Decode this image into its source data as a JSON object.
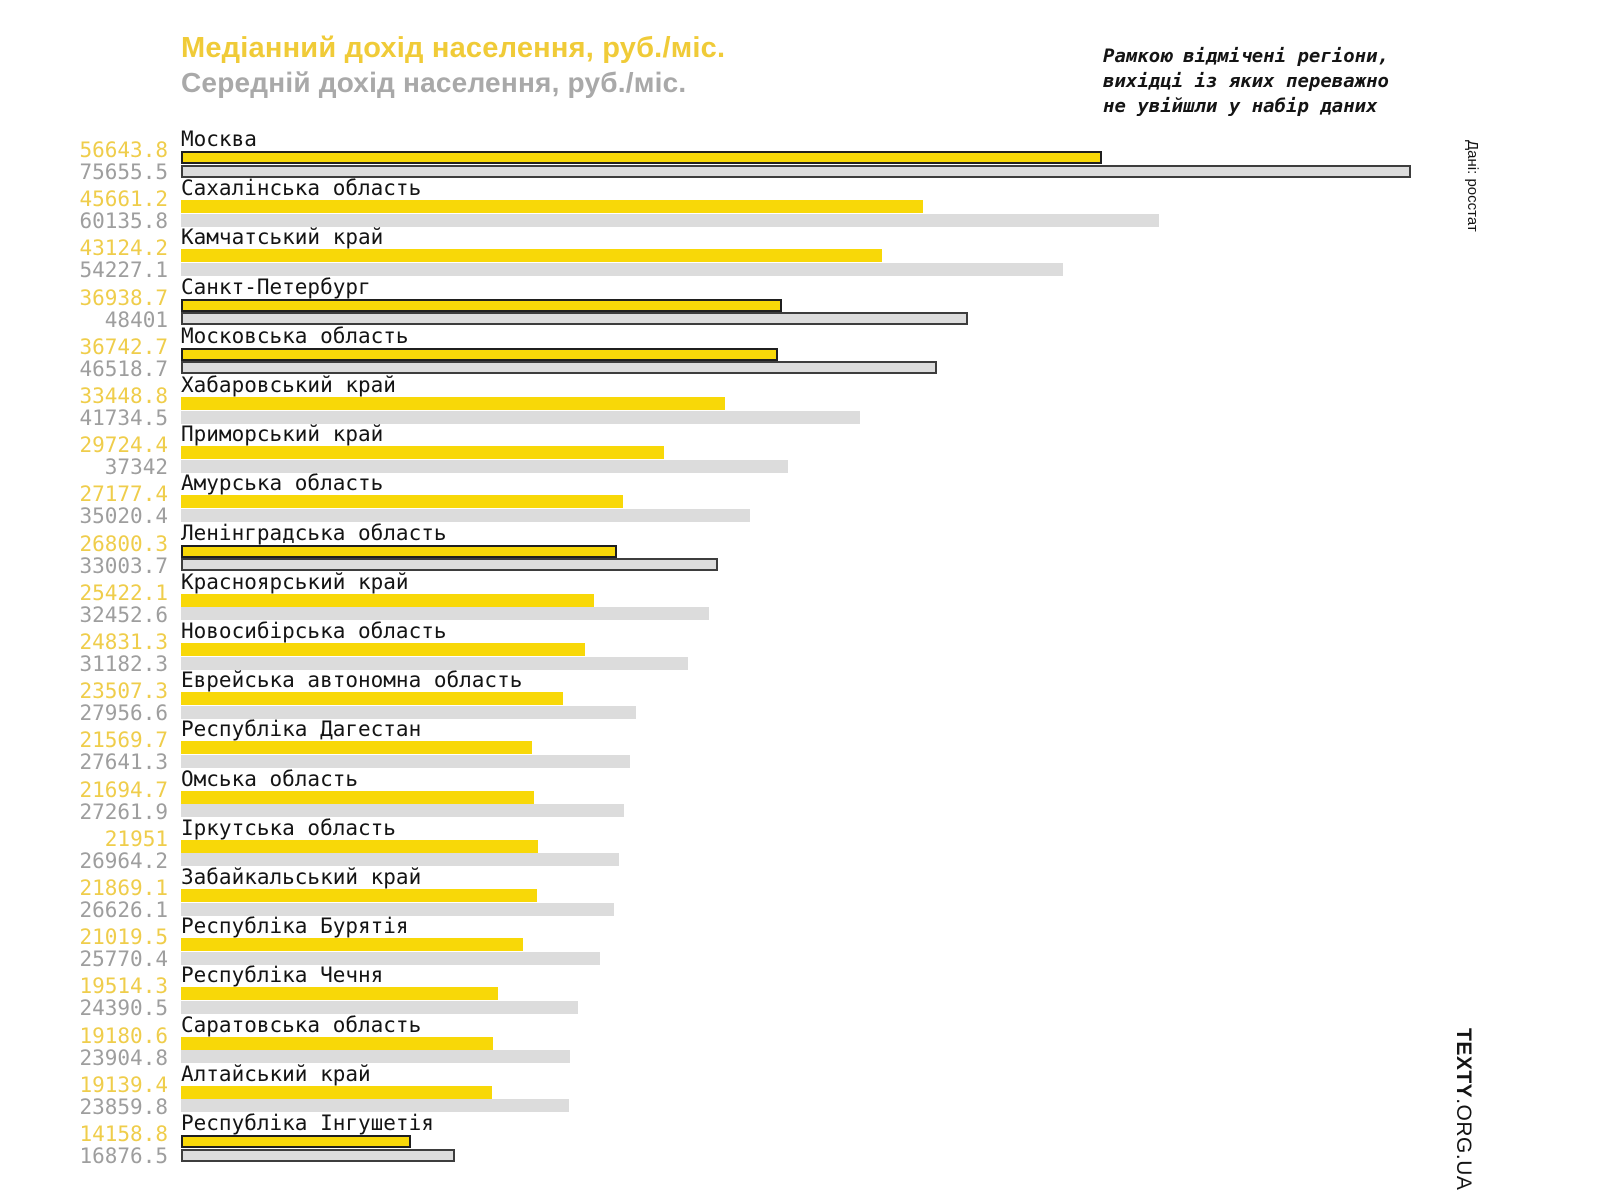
{
  "title": {
    "median": "Медіанний дохід населення, руб./міс.",
    "mean": "Середній дохід населення, руб./міс."
  },
  "annotation": {
    "lines": [
      "Рамкою відмічені регіони,",
      "вихідці із яких переважно",
      "не увійшли у набір даних"
    ]
  },
  "source_note": "Дані: росстат",
  "brand": {
    "bold": "TEXTY",
    "rest": ".ORG.UA"
  },
  "colors": {
    "median_bar": "#F8D808",
    "mean_bar": "#DCDCDC",
    "median_value_text": "#EFCD4B",
    "mean_value_text": "#9E9E9E",
    "title_median": "#F0CB38",
    "title_mean": "#A9A9A9",
    "frame_border": "#1F1F1F",
    "label_text": "#141414"
  },
  "chart_data": {
    "type": "bar",
    "orientation": "horizontal",
    "title": "Медіанний дохід населення, руб./міс.",
    "subtitle": "Середній дохід населення, руб./міс.",
    "series_names": [
      "Медіанний дохід",
      "Середній дохід"
    ],
    "x_range": [
      0,
      75655.5
    ],
    "grid": false,
    "legend_position": "title-as-legend",
    "framed_note": "Рамкою відмічені регіони, вихідці із яких переважно не увійшли у набір даних",
    "regions": [
      {
        "name": "Москва",
        "median": 56643.8,
        "mean": 75655.5,
        "framed": true
      },
      {
        "name": "Сахалінська область",
        "median": 45661.2,
        "mean": 60135.8,
        "framed": false
      },
      {
        "name": "Камчатський край",
        "median": 43124.2,
        "mean": 54227.1,
        "framed": false
      },
      {
        "name": "Санкт-Петербург",
        "median": 36938.7,
        "mean": 48401,
        "framed": true
      },
      {
        "name": "Московська область",
        "median": 36742.7,
        "mean": 46518.7,
        "framed": true
      },
      {
        "name": "Хабаровський край",
        "median": 33448.8,
        "mean": 41734.5,
        "framed": false
      },
      {
        "name": "Приморський край",
        "median": 29724.4,
        "mean": 37342,
        "framed": false
      },
      {
        "name": "Амурська область",
        "median": 27177.4,
        "mean": 35020.4,
        "framed": false
      },
      {
        "name": "Ленінградська область",
        "median": 26800.3,
        "mean": 33003.7,
        "framed": true
      },
      {
        "name": "Красноярський край",
        "median": 25422.1,
        "mean": 32452.6,
        "framed": false
      },
      {
        "name": "Новосибірська область",
        "median": 24831.3,
        "mean": 31182.3,
        "framed": false
      },
      {
        "name": "Еврейська автономна область",
        "median": 23507.3,
        "mean": 27956.6,
        "framed": false
      },
      {
        "name": "Республіка Дагестан",
        "median": 21569.7,
        "mean": 27641.3,
        "framed": false
      },
      {
        "name": "Омська область",
        "median": 21694.7,
        "mean": 27261.9,
        "framed": false
      },
      {
        "name": "Іркутська область",
        "median": 21951,
        "mean": 26964.2,
        "framed": false
      },
      {
        "name": "Забайкальський край",
        "median": 21869.1,
        "mean": 26626.1,
        "framed": false
      },
      {
        "name": "Республіка Бурятія",
        "median": 21019.5,
        "mean": 25770.4,
        "framed": false
      },
      {
        "name": "Республіка Чечня",
        "median": 19514.3,
        "mean": 24390.5,
        "framed": false
      },
      {
        "name": "Саратовська область",
        "median": 19180.6,
        "mean": 23904.8,
        "framed": false
      },
      {
        "name": "Алтайський край",
        "median": 19139.4,
        "mean": 23859.8,
        "framed": false
      },
      {
        "name": "Республіка Інгушетія",
        "median": 14158.8,
        "mean": 16876.5,
        "framed": true
      }
    ]
  }
}
